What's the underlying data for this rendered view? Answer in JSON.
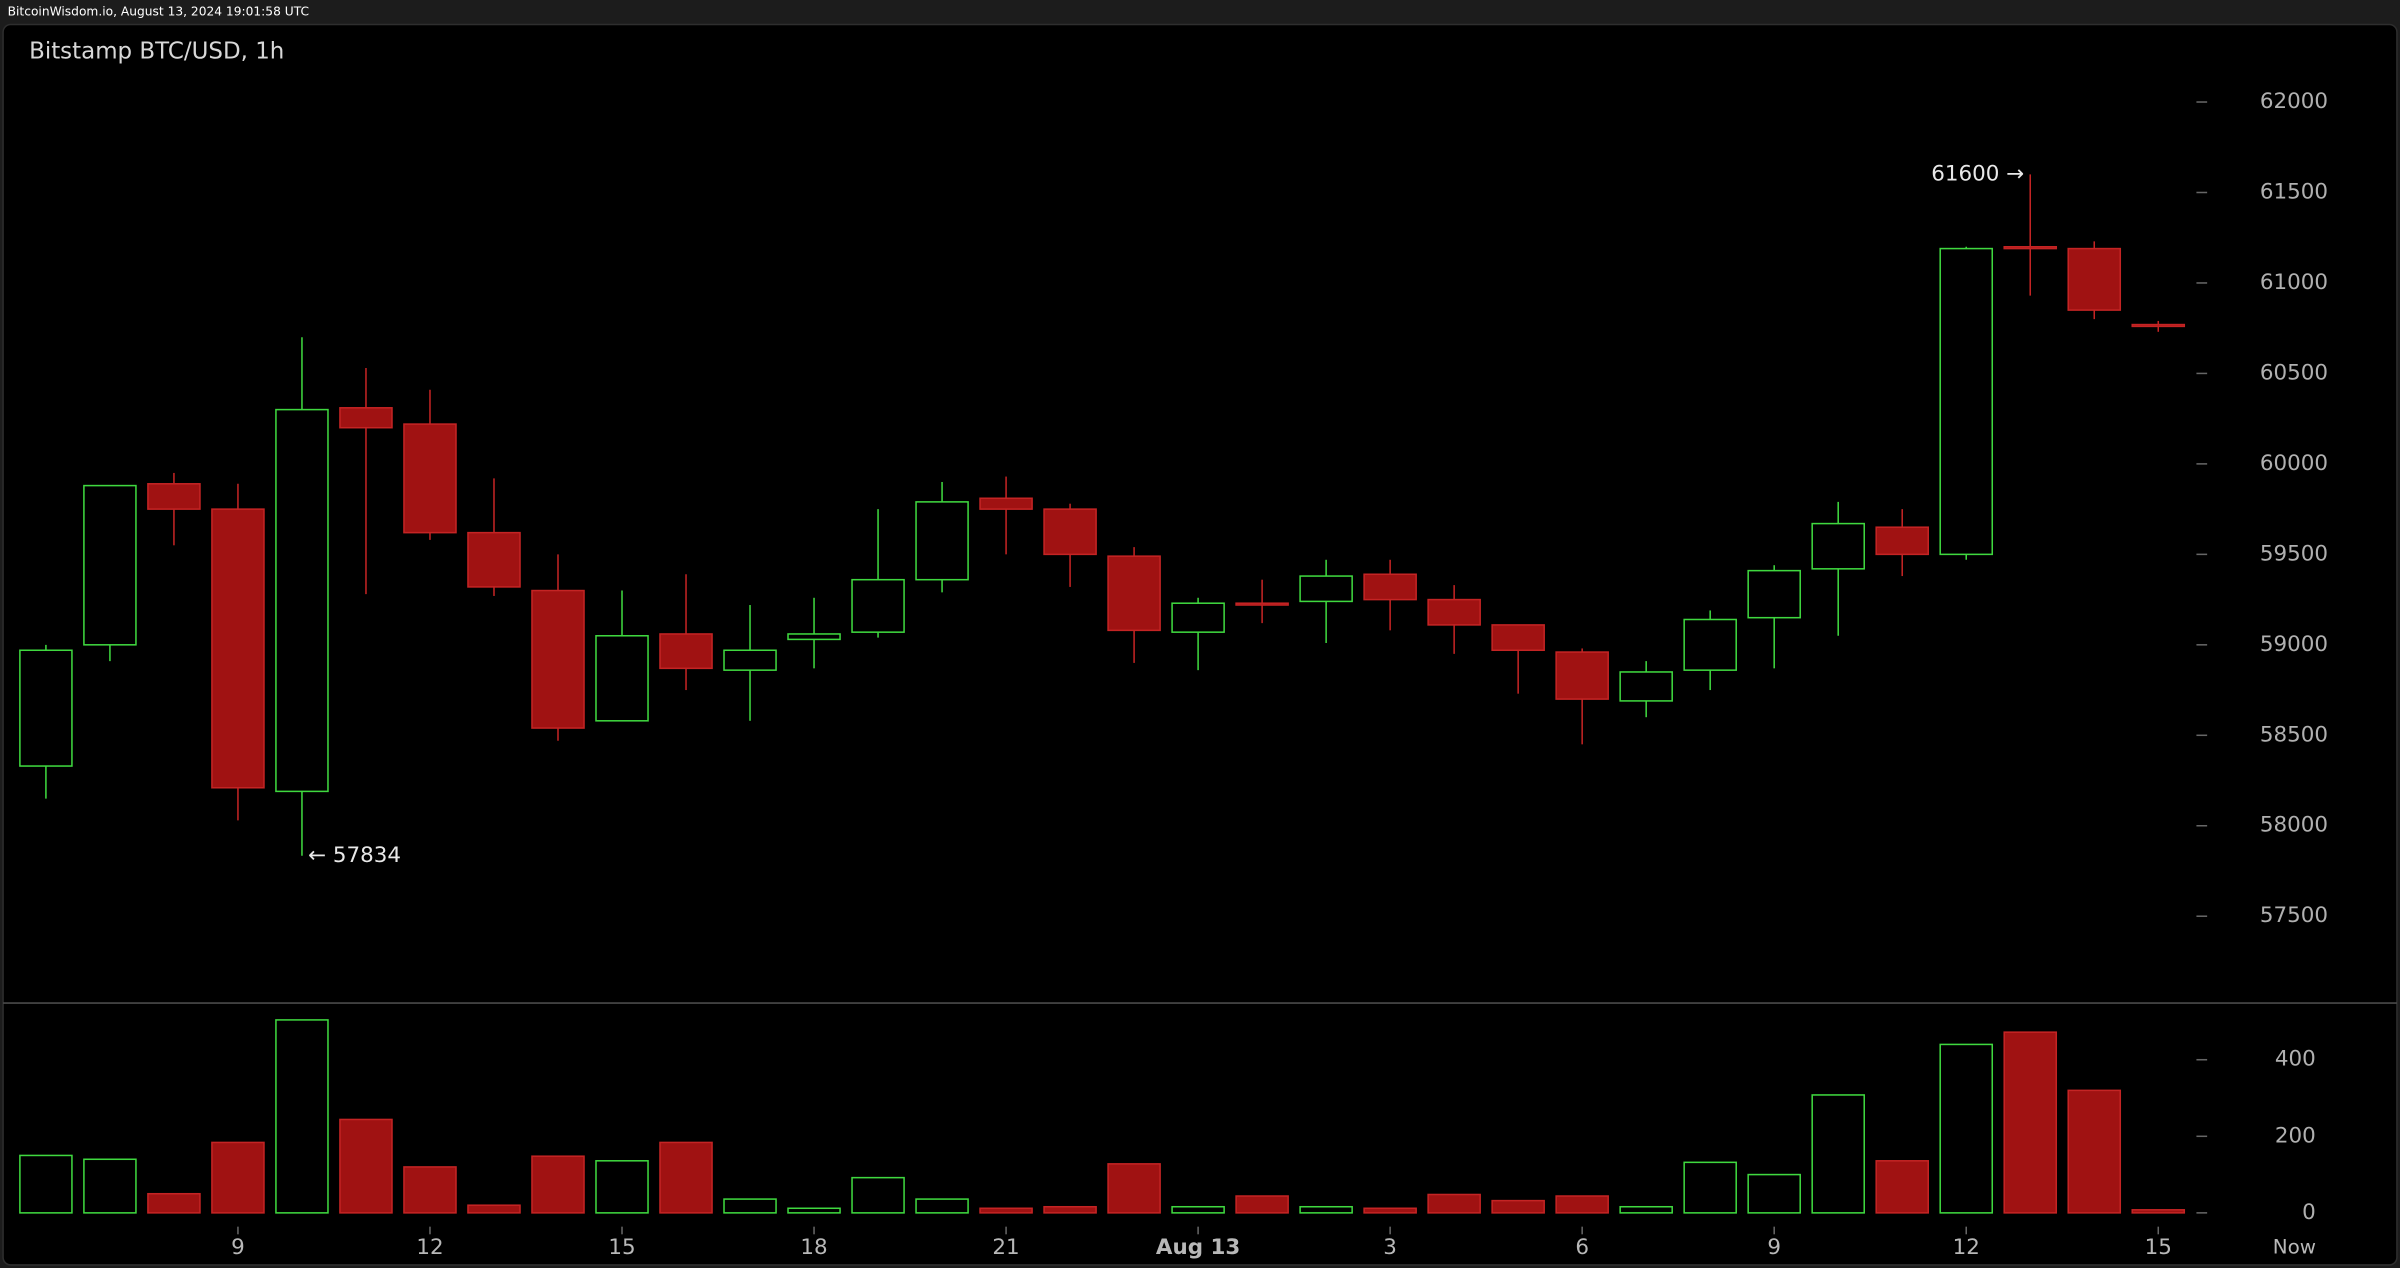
{
  "header": "BitcoinWisdom.io, August 13, 2024 19:01:58 UTC",
  "chart_data": {
    "type": "candlestick",
    "title": "Bitstamp BTC/USD, 1h",
    "categories": [
      null,
      null,
      null,
      "9",
      null,
      null,
      "12",
      null,
      null,
      "15",
      null,
      null,
      "18",
      null,
      null,
      "21",
      null,
      null,
      "Aug 13",
      null,
      null,
      "3",
      null,
      null,
      "6",
      null,
      null,
      "9",
      null,
      null,
      "12",
      null,
      null,
      "15"
    ],
    "now_label": "Now",
    "open": [
      58330,
      59000,
      59890,
      59750,
      58190,
      60310,
      60220,
      59620,
      59300,
      58580,
      59060,
      58860,
      59030,
      59070,
      59360,
      59810,
      59750,
      59490,
      59070,
      59230,
      59240,
      59390,
      59250,
      59110,
      58960,
      58690,
      58860,
      59150,
      59420,
      59650,
      59500,
      61200,
      61190,
      60770
    ],
    "high": [
      59000,
      59880,
      59950,
      59890,
      60700,
      60530,
      60410,
      59920,
      59500,
      59300,
      59390,
      59220,
      59260,
      59750,
      59900,
      59930,
      59780,
      59540,
      59260,
      59360,
      59470,
      59470,
      59330,
      59110,
      58980,
      58910,
      59190,
      59440,
      59790,
      59750,
      61200,
      61600,
      61230,
      60790
    ],
    "low": [
      58150,
      58910,
      59550,
      58030,
      57834,
      59280,
      59580,
      59270,
      58470,
      58580,
      58750,
      58580,
      58870,
      59040,
      59290,
      59500,
      59320,
      58900,
      58860,
      59120,
      59010,
      59080,
      58950,
      58730,
      58450,
      58600,
      58750,
      58870,
      59050,
      59380,
      59470,
      60930,
      60800,
      60730
    ],
    "close": [
      58970,
      59880,
      59750,
      58210,
      60300,
      60200,
      59620,
      59320,
      58540,
      59050,
      58870,
      58970,
      59060,
      59360,
      59790,
      59750,
      59500,
      59080,
      59230,
      59220,
      59380,
      59250,
      59110,
      58970,
      58700,
      58850,
      59140,
      59410,
      59670,
      59500,
      61190,
      61190,
      60850,
      60760
    ],
    "volume": [
      150,
      140,
      50,
      184,
      504,
      244,
      120,
      20,
      148,
      136,
      184,
      36,
      12,
      92,
      36,
      12,
      16,
      128,
      16,
      44,
      16,
      12,
      48,
      32,
      44,
      16,
      132,
      100,
      308,
      136,
      440,
      472,
      320,
      8
    ],
    "up_color": "#3fd83f",
    "down_color": "#a01212",
    "ylim": [
      57020,
      62420
    ],
    "yticks": [
      57500,
      58000,
      58500,
      59000,
      59500,
      60000,
      60500,
      61000,
      61500,
      62000
    ],
    "volume_lim": [
      -32,
      548
    ],
    "volume_ticks": [
      0,
      200,
      400
    ],
    "annotations": [
      {
        "value": 57834,
        "label": "← 57834"
      },
      {
        "value": 61600,
        "label": "61600 →"
      }
    ]
  }
}
